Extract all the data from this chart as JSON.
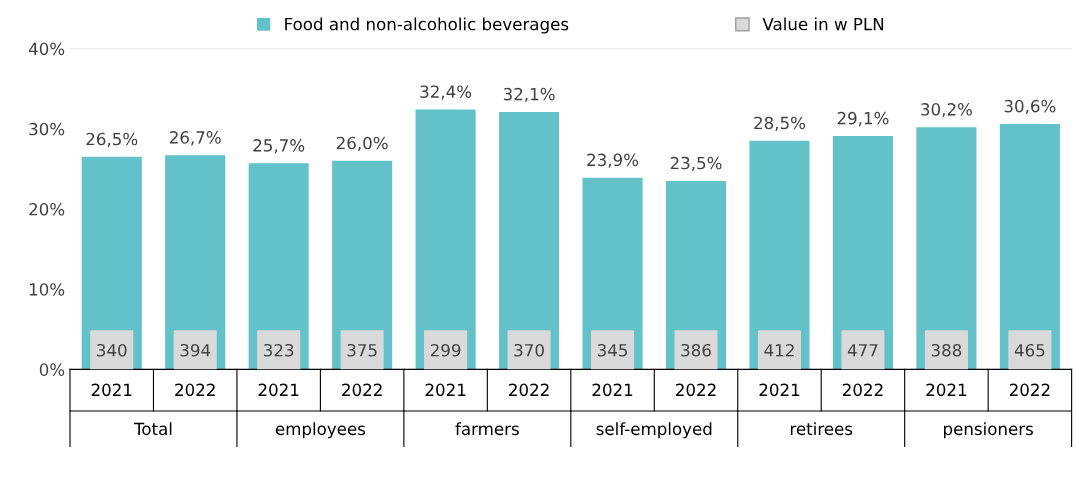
{
  "chart_data": {
    "type": "bar",
    "categories": [
      "2021",
      "2022",
      "2021",
      "2022",
      "2021",
      "2022",
      "2021",
      "2022",
      "2021",
      "2022",
      "2021",
      "2022"
    ],
    "series": [
      {
        "name": "Food and non-alcoholic beverages",
        "color": "#62c1c9",
        "values": [
          26.5,
          26.7,
          25.7,
          26.0,
          32.4,
          32.1,
          23.9,
          23.5,
          28.5,
          29.1,
          30.2,
          30.6
        ],
        "value_labels": [
          "26,5%",
          "26,7%",
          "25,7%",
          "26,0%",
          "32,4%",
          "32,1%",
          "23,9%",
          "23,5%",
          "28,5%",
          "29,1%",
          "30,2%",
          "30,6%"
        ]
      },
      {
        "name": "Value in w PLN",
        "color": "#d9d9d9",
        "type": "scatter",
        "axis": "y2",
        "marker": "square",
        "values": [
          null,
          null,
          null,
          null,
          null,
          null,
          null,
          null,
          null,
          null,
          null,
          null
        ],
        "value_labels": [
          "340",
          "394",
          "323",
          "375",
          "299",
          "370",
          "345",
          "386",
          "412",
          "477",
          "388",
          "465"
        ]
      }
    ],
    "annotations": [
      "Total",
      "employees",
      "farmers",
      "self-employed",
      "retirees",
      "pensioners"
    ],
    "ylim": [
      0,
      40
    ],
    "yticks": [
      {
        "value": 0,
        "label": "0%"
      },
      {
        "value": 10,
        "label": "10%"
      },
      {
        "value": 20,
        "label": "20%"
      },
      {
        "value": 30,
        "label": "30%"
      },
      {
        "value": 40,
        "label": "40%"
      }
    ],
    "grid": false,
    "legend": "top"
  }
}
